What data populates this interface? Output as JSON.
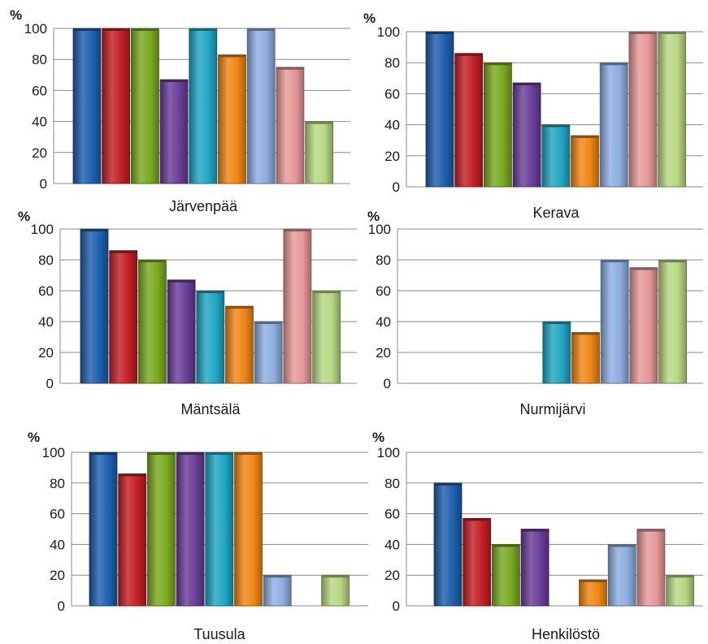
{
  "chart_data": [
    {
      "type": "bar",
      "title": "Järvenpää",
      "ylabel": "%",
      "ylim": [
        0,
        100
      ],
      "yticks": [
        "0",
        "20",
        "40",
        "60",
        "80",
        "100"
      ],
      "grid": true,
      "values": [
        100,
        100,
        100,
        67,
        100,
        83,
        100,
        75,
        40
      ]
    },
    {
      "type": "bar",
      "title": "Kerava",
      "ylabel": "%",
      "ylim": [
        0,
        100
      ],
      "yticks": [
        "0",
        "20",
        "40",
        "60",
        "80",
        "100"
      ],
      "grid": true,
      "values": [
        100,
        86,
        80,
        67,
        40,
        33,
        80,
        100,
        100
      ]
    },
    {
      "type": "bar",
      "title": "Mäntsälä",
      "ylabel": "%",
      "ylim": [
        0,
        100
      ],
      "yticks": [
        "0",
        "20",
        "40",
        "60",
        "80",
        "100"
      ],
      "grid": true,
      "values": [
        100,
        86,
        80,
        67,
        60,
        50,
        40,
        100,
        60
      ]
    },
    {
      "type": "bar",
      "title": "Nurmijärvi",
      "ylabel": "%",
      "ylim": [
        0,
        100
      ],
      "yticks": [
        "0",
        "20",
        "40",
        "60",
        "80",
        "100"
      ],
      "grid": true,
      "values": [
        null,
        null,
        null,
        null,
        40,
        33,
        80,
        75,
        80
      ]
    },
    {
      "type": "bar",
      "title": "Tuusula",
      "ylabel": "%",
      "ylim": [
        0,
        100
      ],
      "yticks": [
        "0",
        "20",
        "40",
        "60",
        "80",
        "100"
      ],
      "grid": true,
      "values": [
        100,
        86,
        100,
        100,
        100,
        100,
        20,
        null,
        20
      ]
    },
    {
      "type": "bar",
      "title": "Henkilöstö",
      "ylabel": "%",
      "ylim": [
        0,
        100
      ],
      "yticks": [
        "0",
        "20",
        "40",
        "60",
        "80",
        "100"
      ],
      "grid": true,
      "values": [
        80,
        57,
        40,
        50,
        null,
        17,
        40,
        50,
        20
      ]
    }
  ],
  "series_colors": [
    "#1f5fae",
    "#c32026",
    "#7aaa22",
    "#6a3e99",
    "#22a6c4",
    "#f08616",
    "#8eaee0",
    "#e59898",
    "#b8d884"
  ]
}
